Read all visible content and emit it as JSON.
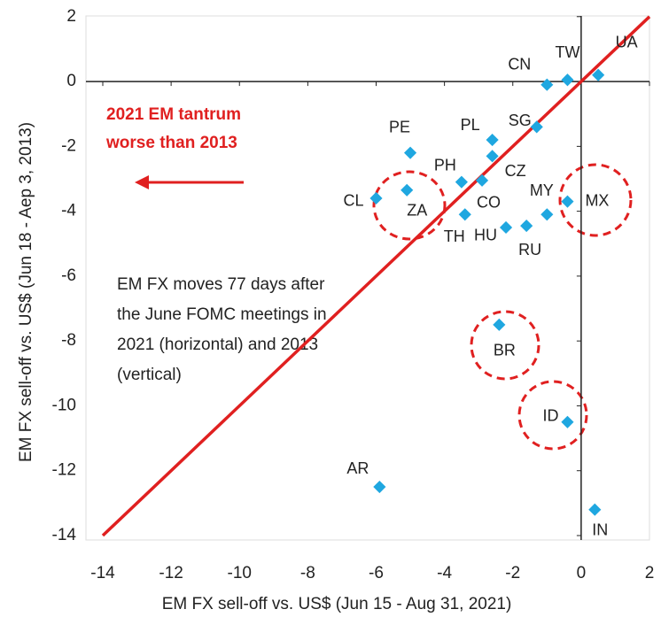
{
  "chart_data": {
    "type": "scatter",
    "xlabel": "EM FX sell-off vs. US$ (Jun 15 - Aug 31, 2021)",
    "ylabel": "EM FX sell-off vs. US$ (Jun 18 - Aep 3, 2013)",
    "xlim": [
      -14,
      2
    ],
    "ylim": [
      -14,
      2
    ],
    "xticks": [
      -14,
      -12,
      -10,
      -8,
      -6,
      -4,
      -2,
      0,
      2
    ],
    "yticks": [
      -14,
      -12,
      -10,
      -8,
      -6,
      -4,
      -2,
      0,
      2
    ],
    "color": "#1fa7e0",
    "line_color": "#e02020",
    "annotations": [
      "2021 EM tantrum",
      "worse than 2013",
      "EM FX moves 77 days after",
      "the June FOMC meetings in",
      "2021 (horizontal) and 2013",
      "(vertical)"
    ],
    "labels": [
      "TW",
      "CN",
      "UA",
      "SG",
      "PL",
      "CZ",
      "PE",
      "PH",
      "CO",
      "ZA",
      "CL",
      "TH",
      "HU",
      "RU",
      "MY",
      "MX",
      "BR",
      "ID",
      "AR",
      "IN"
    ],
    "x": [
      -0.4,
      -1.0,
      0.5,
      -1.3,
      -2.6,
      -2.6,
      -5.0,
      -3.5,
      -2.9,
      -5.1,
      -6.0,
      -3.4,
      -2.2,
      -1.6,
      -1.0,
      -0.4,
      -2.4,
      -0.4,
      -5.9,
      0.4
    ],
    "y": [
      0.05,
      -0.1,
      0.2,
      -1.4,
      -1.8,
      -2.3,
      -2.2,
      -3.1,
      -3.05,
      -3.35,
      -3.6,
      -4.1,
      -4.5,
      -4.45,
      -4.1,
      -3.7,
      -7.5,
      -10.5,
      -12.5,
      -13.2
    ]
  }
}
